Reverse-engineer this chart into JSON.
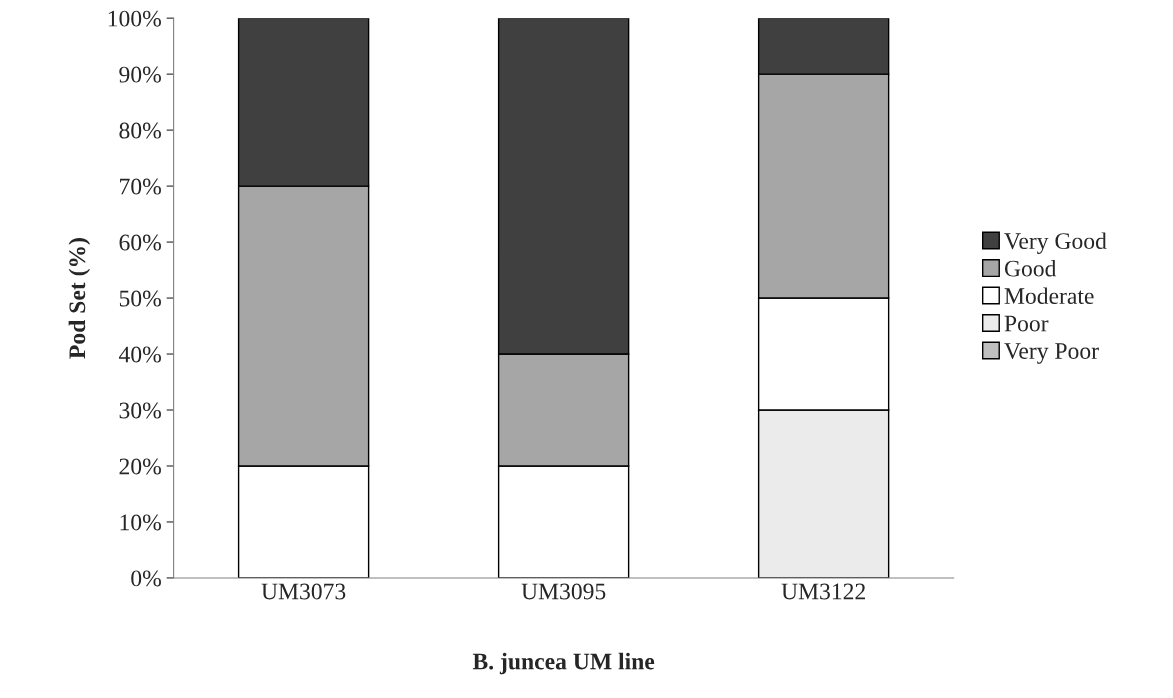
{
  "chart_data": {
    "type": "bar",
    "stacked": true,
    "xlabel": "B. juncea UM line",
    "ylabel": "Pod Set (%)",
    "categories": [
      "UM3073",
      "UM3095",
      "UM3122"
    ],
    "series": [
      {
        "name": "Very Poor",
        "color": "#bfbfbf",
        "values": [
          0,
          0,
          0
        ]
      },
      {
        "name": "Poor",
        "color": "#ebebeb",
        "values": [
          0,
          0,
          30
        ]
      },
      {
        "name": "Moderate",
        "color": "#ffffff",
        "values": [
          20,
          20,
          20
        ]
      },
      {
        "name": "Good",
        "color": "#a6a6a6",
        "values": [
          50,
          20,
          40
        ]
      },
      {
        "name": "Very Good",
        "color": "#404040",
        "values": [
          30,
          60,
          10
        ]
      }
    ],
    "ylim": [
      0,
      100
    ],
    "yticks": [
      {
        "value": 0,
        "label": "0%"
      },
      {
        "value": 10,
        "label": "10%"
      },
      {
        "value": 20,
        "label": "20%"
      },
      {
        "value": 30,
        "label": "30%"
      },
      {
        "value": 40,
        "label": "40%"
      },
      {
        "value": 50,
        "label": "50%"
      },
      {
        "value": 60,
        "label": "60%"
      },
      {
        "value": 70,
        "label": "70%"
      },
      {
        "value": 80,
        "label": "80%"
      },
      {
        "value": 90,
        "label": "90%"
      },
      {
        "value": 100,
        "label": "100%"
      }
    ],
    "grid": false,
    "legend": "right"
  }
}
